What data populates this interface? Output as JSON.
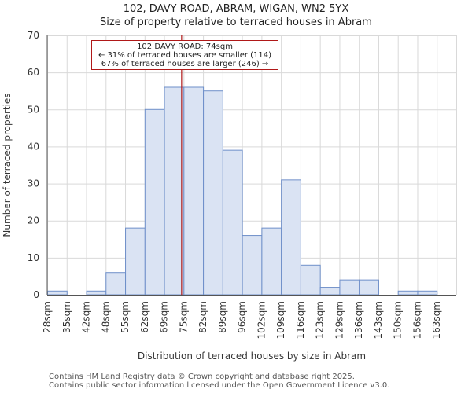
{
  "title_line1": "102, DAVY ROAD, ABRAM, WIGAN, WN2 5YX",
  "title_line2": "Size of property relative to terraced houses in Abram",
  "annotation": {
    "line1": "102 DAVY ROAD: 74sqm",
    "line2": "← 31% of terraced houses are smaller (114)",
    "line3": "67% of terraced houses are larger (246) →"
  },
  "footer": {
    "line1": "Contains HM Land Registry data © Crown copyright and database right 2025.",
    "line2": "Contains public sector information licensed under the Open Government Licence v3.0."
  },
  "colors": {
    "bar_fill": "#dae3f3",
    "bar_stroke": "#6e8fc9",
    "marker": "#b01818",
    "grid": "#d9d9d9",
    "axis": "#555555"
  },
  "chart_data": {
    "type": "bar",
    "title": "102, DAVY ROAD, ABRAM, WIGAN, WN2 5YX — Size of property relative to terraced houses in Abram",
    "xlabel": "Distribution of terraced houses by size in Abram",
    "ylabel": "Number of terraced properties",
    "categories": [
      "28sqm",
      "35sqm",
      "42sqm",
      "48sqm",
      "55sqm",
      "62sqm",
      "69sqm",
      "75sqm",
      "82sqm",
      "89sqm",
      "96sqm",
      "102sqm",
      "109sqm",
      "116sqm",
      "123sqm",
      "129sqm",
      "136sqm",
      "143sqm",
      "150sqm",
      "156sqm",
      "163sqm"
    ],
    "values": [
      1,
      0,
      1,
      6,
      18,
      50,
      56,
      56,
      55,
      39,
      16,
      18,
      31,
      8,
      2,
      4,
      4,
      0,
      1,
      1,
      0
    ],
    "ylim": [
      0,
      70
    ],
    "yticks": [
      0,
      10,
      20,
      30,
      40,
      50,
      60,
      70
    ],
    "grid": true,
    "marker_value_sqm": 74,
    "marker_position_bins": 6.9
  }
}
